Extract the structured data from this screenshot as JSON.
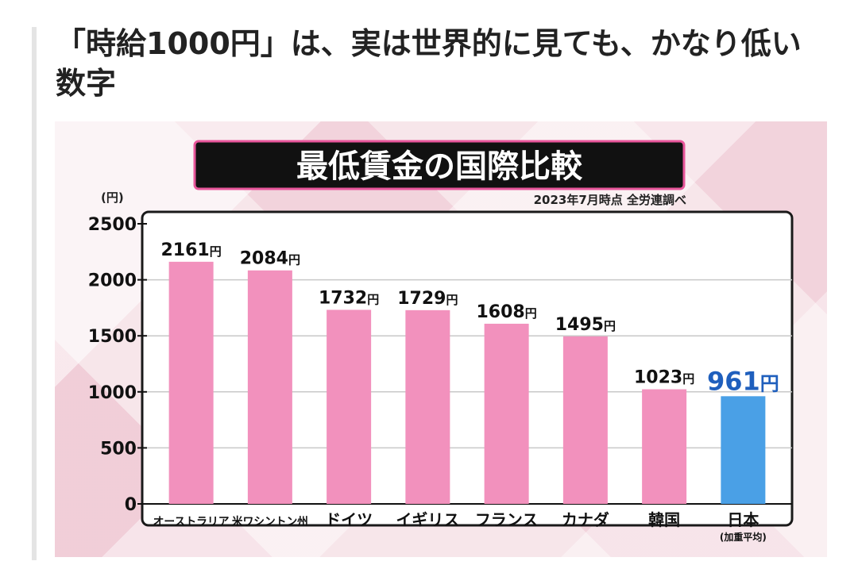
{
  "headline": "「時給1000円」は、実は世界的に見ても、かなり低い数字",
  "colors": {
    "default_bar": "#f291bd",
    "highlight_bar": "#4aa0e6",
    "highlight_text": "#1f5fbd",
    "title_banner": "#111111",
    "title_border": "#e8569b"
  },
  "chart_data": {
    "type": "bar",
    "title": "最低賃金の国際比較",
    "subtitle": "2023年7月時点 全労連調べ",
    "ylabel": "(円)",
    "xlabel": "",
    "ylim": [
      0,
      2500
    ],
    "yticks": [
      0,
      500,
      1000,
      1500,
      2000,
      2500
    ],
    "grid": true,
    "value_unit": "円",
    "categories": [
      "オーストラリア",
      "米ワシントン州",
      "ドイツ",
      "イギリス",
      "フランス",
      "カナダ",
      "韓国",
      "日本"
    ],
    "category_notes": [
      "",
      "",
      "",
      "",
      "",
      "",
      "",
      "(加重平均)"
    ],
    "values": [
      2161,
      2084,
      1732,
      1729,
      1608,
      1495,
      1023,
      961
    ],
    "highlight_index": 7
  }
}
